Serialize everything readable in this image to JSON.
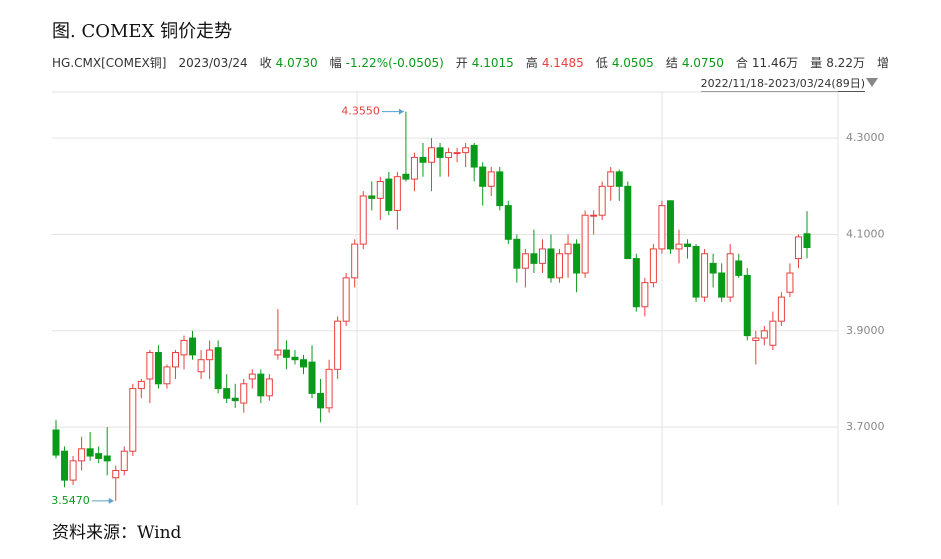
{
  "chart_data": {
    "type": "candlestick",
    "title": "图. COMEX 铜价走势",
    "info": [
      {
        "label": "HG.CMX[COMEX铜]",
        "color": "#333333"
      },
      {
        "label": "2023/03/24",
        "color": "#333333"
      },
      {
        "label": "收",
        "value": "4.0730",
        "color": "#0a9a1a"
      },
      {
        "label": "幅",
        "value": "-1.22%(-0.0505)",
        "color": "#0a9a1a"
      },
      {
        "label": "开",
        "value": "4.1015",
        "color": "#0a9a1a"
      },
      {
        "label": "高",
        "value": "4.1485",
        "color": "#e8413e"
      },
      {
        "label": "低",
        "value": "4.0505",
        "color": "#0a9a1a"
      },
      {
        "label": "结",
        "value": "4.0750",
        "color": "#0a9a1a"
      },
      {
        "label": "合",
        "value": "11.46万",
        "color": "#333333"
      },
      {
        "label": "量",
        "value": "8.22万",
        "color": "#333333"
      },
      {
        "label": "增",
        "color": "#333333"
      }
    ],
    "date_range": "2022/11/18-2023/03/24(89日)",
    "source": "资料来源：Wind",
    "up_color": "#e8413e",
    "down_color": "#0a9a1a",
    "open": [
      3.694,
      3.65,
      3.59,
      3.63,
      3.655,
      3.645,
      3.64,
      3.595,
      3.61,
      3.65,
      3.78,
      3.8,
      3.855,
      3.79,
      3.825,
      3.85,
      3.885,
      3.815,
      3.84,
      3.865,
      3.78,
      3.76,
      3.75,
      3.8,
      3.81,
      3.765,
      3.85,
      3.86,
      3.845,
      3.84,
      3.835,
      3.77,
      3.74,
      3.82,
      3.92,
      4.01,
      4.08,
      4.18,
      4.175,
      4.215,
      4.15,
      4.225,
      4.215,
      4.26,
      4.25,
      4.28,
      4.26,
      4.27,
      4.27,
      4.285,
      4.24,
      4.2,
      4.23,
      4.16,
      4.09,
      4.03,
      4.06,
      4.04,
      4.07,
      4.01,
      4.06,
      4.08,
      4.02,
      4.14,
      4.14,
      4.2,
      4.23,
      4.2,
      4.05,
      3.95,
      4.0,
      4.07,
      4.17,
      4.07,
      4.08,
      4.075,
      3.97,
      4.04,
      4.02,
      3.97,
      4.045,
      4.015,
      3.88,
      3.885,
      3.87,
      3.92,
      3.98,
      4.05,
      4.1015
    ],
    "high": [
      3.715,
      3.66,
      3.64,
      3.68,
      3.69,
      3.66,
      3.7,
      3.62,
      3.66,
      3.79,
      3.8,
      3.86,
      3.87,
      3.83,
      3.86,
      3.89,
      3.9,
      3.86,
      3.88,
      3.88,
      3.81,
      3.79,
      3.8,
      3.82,
      3.82,
      3.81,
      3.945,
      3.88,
      3.86,
      3.85,
      3.87,
      3.8,
      3.84,
      3.93,
      4.02,
      4.09,
      4.19,
      4.21,
      4.22,
      4.23,
      4.23,
      4.355,
      4.27,
      4.29,
      4.3,
      4.29,
      4.28,
      4.28,
      4.29,
      4.29,
      4.25,
      4.24,
      4.24,
      4.17,
      4.1,
      4.07,
      4.11,
      4.09,
      4.1,
      4.07,
      4.1,
      4.09,
      4.15,
      4.15,
      4.21,
      4.24,
      4.235,
      4.21,
      4.06,
      4.01,
      4.08,
      4.17,
      4.17,
      4.11,
      4.09,
      4.08,
      4.07,
      4.06,
      4.04,
      4.08,
      4.06,
      4.03,
      3.9,
      3.91,
      3.94,
      3.98,
      4.04,
      4.1,
      4.1485
    ],
    "low": [
      3.635,
      3.575,
      3.58,
      3.61,
      3.63,
      3.625,
      3.6,
      3.547,
      3.6,
      3.64,
      3.76,
      3.75,
      3.78,
      3.78,
      3.8,
      3.82,
      3.84,
      3.8,
      3.8,
      3.77,
      3.75,
      3.74,
      3.73,
      3.78,
      3.75,
      3.755,
      3.84,
      3.82,
      3.83,
      3.81,
      3.76,
      3.71,
      3.73,
      3.8,
      3.91,
      3.99,
      4.07,
      4.15,
      4.13,
      4.14,
      4.11,
      4.21,
      4.19,
      4.22,
      4.19,
      4.22,
      4.22,
      4.25,
      4.24,
      4.21,
      4.16,
      4.18,
      4.15,
      4.08,
      4.0,
      3.99,
      4.02,
      4.02,
      4.0,
      4.0,
      4.01,
      3.98,
      4.01,
      4.1,
      4.13,
      4.17,
      4.17,
      4.05,
      3.94,
      3.93,
      3.99,
      4.06,
      4.06,
      4.04,
      4.05,
      3.96,
      3.96,
      3.99,
      3.96,
      3.96,
      4.01,
      3.88,
      3.83,
      3.87,
      3.86,
      3.91,
      3.97,
      4.03,
      4.0505
    ],
    "close": [
      3.642,
      3.59,
      3.63,
      3.655,
      3.64,
      3.635,
      3.63,
      3.61,
      3.65,
      3.78,
      3.795,
      3.855,
      3.79,
      3.825,
      3.855,
      3.88,
      3.85,
      3.84,
      3.86,
      3.78,
      3.76,
      3.755,
      3.79,
      3.81,
      3.765,
      3.8,
      3.86,
      3.845,
      3.84,
      3.825,
      3.77,
      3.74,
      3.82,
      3.92,
      4.01,
      4.08,
      4.18,
      4.175,
      4.21,
      4.15,
      4.22,
      4.215,
      4.26,
      4.25,
      4.28,
      4.26,
      4.27,
      4.27,
      4.28,
      4.24,
      4.2,
      4.23,
      4.16,
      4.09,
      4.03,
      4.06,
      4.04,
      4.07,
      4.01,
      4.06,
      4.08,
      4.02,
      4.14,
      4.14,
      4.2,
      4.23,
      4.2,
      4.05,
      3.95,
      4.0,
      4.07,
      4.16,
      4.07,
      4.08,
      4.075,
      3.97,
      4.06,
      4.02,
      3.97,
      4.06,
      4.015,
      3.89,
      3.885,
      3.9,
      3.92,
      3.97,
      4.02,
      4.095,
      4.073
    ],
    "annotations": [
      {
        "value": 4.355,
        "label": "4.3550"
      },
      {
        "value": 3.547,
        "label": "3.5470"
      }
    ],
    "ylim": [
      3.53,
      4.4
    ],
    "yticks": [
      {
        "value": 3.7,
        "label": "3.7000"
      },
      {
        "value": 3.9,
        "label": "3.9000"
      },
      {
        "value": 4.1,
        "label": "4.1000"
      },
      {
        "value": 4.3,
        "label": "4.3000"
      }
    ],
    "grid": true
  }
}
